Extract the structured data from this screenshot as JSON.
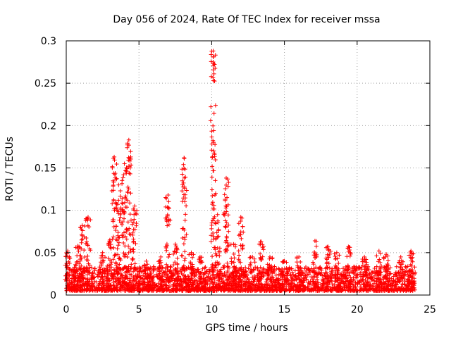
{
  "chart_data": {
    "type": "scatter",
    "title": "Day 056 of 2024, Rate Of TEC Index for receiver mssa",
    "xlabel": "GPS time / hours",
    "ylabel": "ROTI / TECUs",
    "xlim": [
      0,
      25
    ],
    "ylim": [
      0,
      0.3
    ],
    "x_ticks": [
      0,
      5,
      10,
      15,
      20,
      25
    ],
    "y_ticks": [
      0,
      0.05,
      0.1,
      0.15,
      0.2,
      0.25,
      0.3
    ],
    "grid": true,
    "marker": "plus",
    "color": "#ff0000",
    "data_coverage_hours": [
      0,
      24
    ],
    "typical_baseline_range": [
      0.005,
      0.03
    ],
    "peaks": [
      {
        "x": 0.1,
        "y": 0.052
      },
      {
        "x": 0.8,
        "y": 0.058
      },
      {
        "x": 1.1,
        "y": 0.082
      },
      {
        "x": 1.5,
        "y": 0.092
      },
      {
        "x": 2.5,
        "y": 0.05
      },
      {
        "x": 3.0,
        "y": 0.065
      },
      {
        "x": 3.3,
        "y": 0.163
      },
      {
        "x": 3.6,
        "y": 0.13
      },
      {
        "x": 4.0,
        "y": 0.155
      },
      {
        "x": 4.3,
        "y": 0.183
      },
      {
        "x": 4.7,
        "y": 0.105
      },
      {
        "x": 5.5,
        "y": 0.04
      },
      {
        "x": 6.5,
        "y": 0.045
      },
      {
        "x": 7.0,
        "y": 0.118
      },
      {
        "x": 7.5,
        "y": 0.06
      },
      {
        "x": 8.1,
        "y": 0.162
      },
      {
        "x": 8.6,
        "y": 0.05
      },
      {
        "x": 9.2,
        "y": 0.045
      },
      {
        "x": 10.1,
        "y": 0.288
      },
      {
        "x": 10.4,
        "y": 0.095
      },
      {
        "x": 11.0,
        "y": 0.138
      },
      {
        "x": 11.5,
        "y": 0.06
      },
      {
        "x": 12.0,
        "y": 0.092
      },
      {
        "x": 12.8,
        "y": 0.045
      },
      {
        "x": 13.4,
        "y": 0.063
      },
      {
        "x": 14.0,
        "y": 0.045
      },
      {
        "x": 15.0,
        "y": 0.04
      },
      {
        "x": 16.0,
        "y": 0.045
      },
      {
        "x": 17.1,
        "y": 0.064
      },
      {
        "x": 18.0,
        "y": 0.057
      },
      {
        "x": 18.6,
        "y": 0.05
      },
      {
        "x": 19.4,
        "y": 0.057
      },
      {
        "x": 20.5,
        "y": 0.045
      },
      {
        "x": 21.5,
        "y": 0.052
      },
      {
        "x": 22.0,
        "y": 0.048
      },
      {
        "x": 23.0,
        "y": 0.045
      },
      {
        "x": 23.7,
        "y": 0.052
      }
    ]
  }
}
